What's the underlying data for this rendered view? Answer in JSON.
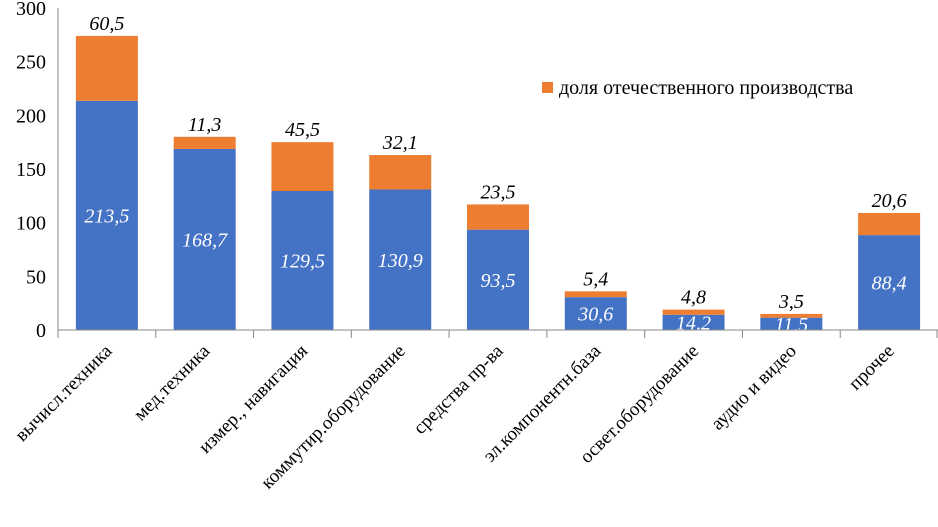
{
  "chart_data": {
    "type": "bar",
    "stacked": true,
    "title": "",
    "xlabel": "",
    "ylabel": "",
    "ylim": [
      0,
      300
    ],
    "yticks": [
      0,
      50,
      100,
      150,
      200,
      250,
      300
    ],
    "grid": false,
    "categories": [
      "вычисл.техника",
      "мед.техника",
      "измер., навигация",
      "коммутир.оборудование",
      "средства пр-ва",
      "эл.компонентн.база",
      "освет.оборудование",
      "аудио и видео",
      "прочее"
    ],
    "series": [
      {
        "name": "",
        "color": "#4472C4",
        "values": [
          213.5,
          168.7,
          129.5,
          130.9,
          93.5,
          30.6,
          14.2,
          11.5,
          88.4
        ],
        "labels": [
          "213,5",
          "168,7",
          "129,5",
          "130,9",
          "93,5",
          "30,6",
          "14,2",
          "11,5",
          "88,4"
        ]
      },
      {
        "name": "доля отечественного производства",
        "color": "#ED7D31",
        "values": [
          60.5,
          11.3,
          45.5,
          32.1,
          23.5,
          5.4,
          4.8,
          3.5,
          20.6
        ],
        "labels": [
          "60,5",
          "11,3",
          "45,5",
          "32,1",
          "23,5",
          "5,4",
          "4,8",
          "3,5",
          "20,6"
        ]
      }
    ],
    "legend": {
      "placement": "top-right",
      "entries": [
        "доля отечественного производства"
      ]
    }
  }
}
